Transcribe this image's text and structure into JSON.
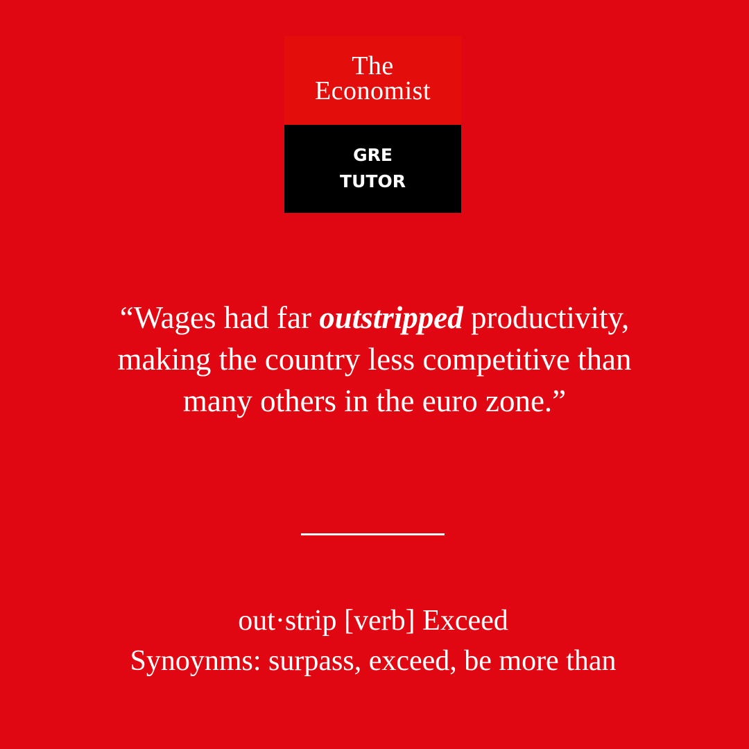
{
  "colors": {
    "background": "#e10712",
    "logo_red": "#e30e0c",
    "logo_black": "#000000",
    "text": "#ffffff"
  },
  "logo": {
    "line1": "The",
    "line2": "Economist",
    "sub1": "GRE",
    "sub2": "TUTOR"
  },
  "quote": {
    "before": "“Wages had far ",
    "emphasis": "outstripped",
    "after": " productivity, making the country less competitive than many others in the euro zone.”"
  },
  "definition": {
    "entry": "out·strip [verb] Exceed",
    "synonyms": "Synoynms: surpass, exceed, be more than"
  }
}
